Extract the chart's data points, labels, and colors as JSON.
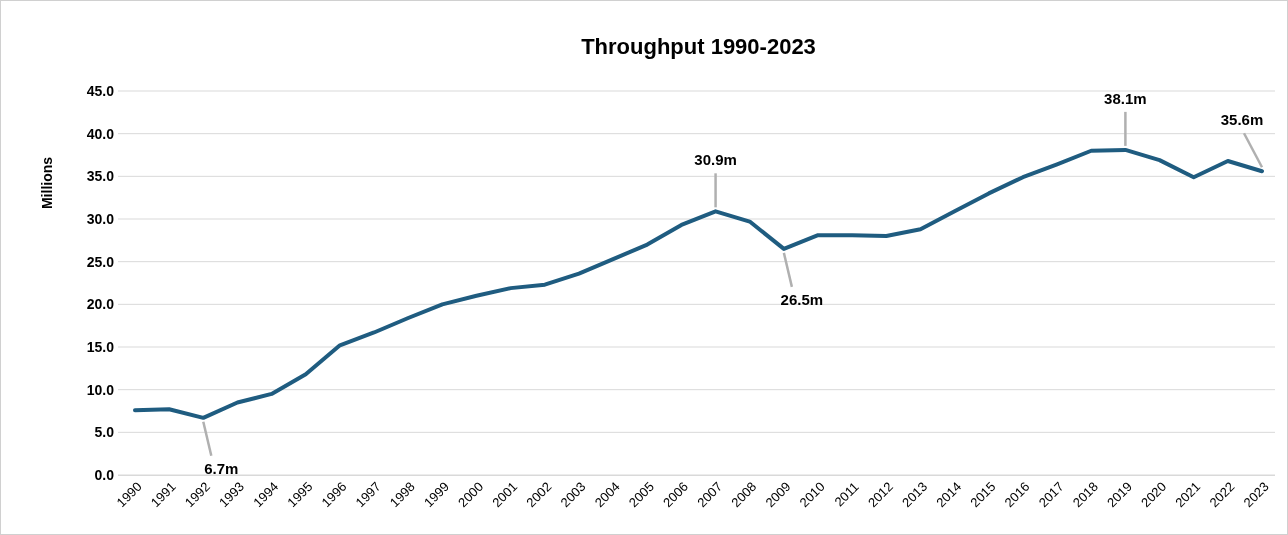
{
  "chart_data": {
    "type": "line",
    "title": "Throughput 1990-2023",
    "ylabel": "Millions",
    "categories": [
      "1990",
      "1991",
      "1992",
      "1993",
      "1994",
      "1995",
      "1996",
      "1997",
      "1998",
      "1999",
      "2000",
      "2001",
      "2002",
      "2003",
      "2004",
      "2005",
      "2006",
      "2007",
      "2008",
      "2009",
      "2010",
      "2011",
      "2012",
      "2013",
      "2014",
      "2015",
      "2016",
      "2017",
      "2018",
      "2019",
      "2020",
      "2021",
      "2022",
      "2023"
    ],
    "series": [
      {
        "color": "#1f5c80",
        "values": [
          7.6,
          7.7,
          6.7,
          8.5,
          9.5,
          11.8,
          15.2,
          16.7,
          18.4,
          20.0,
          21.0,
          21.9,
          22.3,
          23.6,
          25.3,
          27.0,
          29.3,
          30.9,
          29.7,
          26.5,
          28.1,
          28.1,
          28.0,
          28.8,
          30.9,
          33.0,
          34.9,
          36.4,
          38.0,
          38.1,
          36.9,
          34.9,
          36.8,
          35.6
        ]
      }
    ],
    "ylim": [
      0,
      45
    ],
    "yticks": [
      {
        "value": 0,
        "label": "0.0"
      },
      {
        "value": 5,
        "label": "5.0"
      },
      {
        "value": 10,
        "label": "10.0"
      },
      {
        "value": 15,
        "label": "15.0"
      },
      {
        "value": 20,
        "label": "20.0"
      },
      {
        "value": 25,
        "label": "25.0"
      },
      {
        "value": 30,
        "label": "30.0"
      },
      {
        "value": 35,
        "label": "35.0"
      },
      {
        "value": 40,
        "label": "40.0"
      },
      {
        "value": 45,
        "label": "45.0"
      }
    ],
    "grid": "y",
    "marker": "none",
    "line_style": "solid",
    "annotations": [
      {
        "text": "6.7m",
        "x": "1992",
        "y": 6.7
      },
      {
        "text": "30.9m",
        "x": "2007",
        "y": 30.9
      },
      {
        "text": "26.5m",
        "x": "2009",
        "y": 26.5
      },
      {
        "text": "38.1m",
        "x": "2019",
        "y": 38.1
      },
      {
        "text": "35.6m",
        "x": "2023",
        "y": 35.6
      }
    ]
  }
}
